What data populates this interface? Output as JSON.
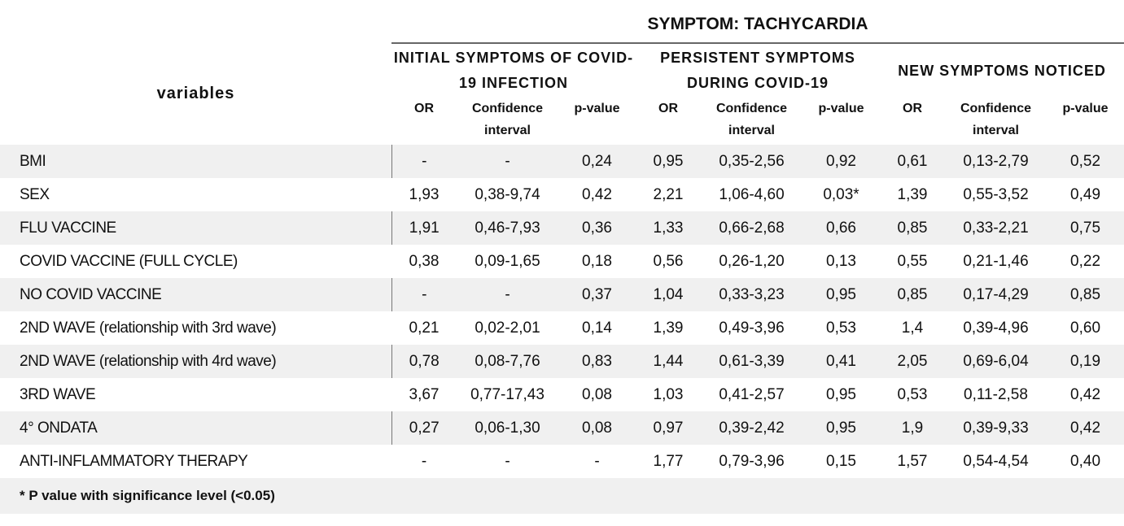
{
  "table": {
    "title": "SYMPTOM: TACHYCARDIA",
    "row_header": "variables",
    "groups": [
      "INITIAL SYMPTOMS OF COVID-19 INFECTION",
      "PERSISTENT SYMPTOMS DURING COVID-19",
      "NEW SYMPTOMS NOTICED"
    ],
    "subheaders": [
      "OR",
      "Confidence interval",
      "p-value",
      "OR",
      "Confidence interval",
      "p-value",
      "OR",
      "Confidence interval",
      "p-value"
    ],
    "rows": [
      [
        "BMI",
        "-",
        "-",
        "0,24",
        "0,95",
        "0,35-2,56",
        "0,92",
        "0,61",
        "0,13-2,79",
        "0,52"
      ],
      [
        "SEX",
        "1,93",
        "0,38-9,74",
        "0,42",
        "2,21",
        "1,06-4,60",
        "0,03*",
        "1,39",
        "0,55-3,52",
        "0,49"
      ],
      [
        "FLU VACCINE",
        "1,91",
        "0,46-7,93",
        "0,36",
        "1,33",
        "0,66-2,68",
        "0,66",
        "0,85",
        "0,33-2,21",
        "0,75"
      ],
      [
        "COVID VACCINE (FULL CYCLE)",
        "0,38",
        "0,09-1,65",
        "0,18",
        "0,56",
        "0,26-1,20",
        "0,13",
        "0,55",
        "0,21-1,46",
        "0,22"
      ],
      [
        "NO COVID VACCINE",
        "-",
        "-",
        "0,37",
        "1,04",
        "0,33-3,23",
        "0,95",
        "0,85",
        "0,17-4,29",
        "0,85"
      ],
      [
        "2ND WAVE (relationship with 3rd wave)",
        "0,21",
        "0,02-2,01",
        "0,14",
        "1,39",
        "0,49-3,96",
        "0,53",
        "1,4",
        "0,39-4,96",
        "0,60"
      ],
      [
        "2ND WAVE (relationship with 4rd wave)",
        "0,78",
        "0,08-7,76",
        "0,83",
        "1,44",
        "0,61-3,39",
        "0,41",
        "2,05",
        "0,69-6,04",
        "0,19"
      ],
      [
        "3RD WAVE",
        "3,67",
        "0,77-17,43",
        "0,08",
        "1,03",
        "0,41-2,57",
        "0,95",
        "0,53",
        "0,11-2,58",
        "0,42"
      ],
      [
        "4° ONDATA",
        "0,27",
        "0,06-1,30",
        "0,08",
        "0,97",
        "0,39-2,42",
        "0,95",
        "1,9",
        "0,39-9,33",
        "0,42"
      ],
      [
        "ANTI-INFLAMMATORY THERAPY",
        "-",
        "-",
        "-",
        "1,77",
        "0,79-3,96",
        "0,15",
        "1,57",
        "0,54-4,54",
        "0,40"
      ]
    ],
    "footnote": "* P value with significance level (<0.05)"
  }
}
